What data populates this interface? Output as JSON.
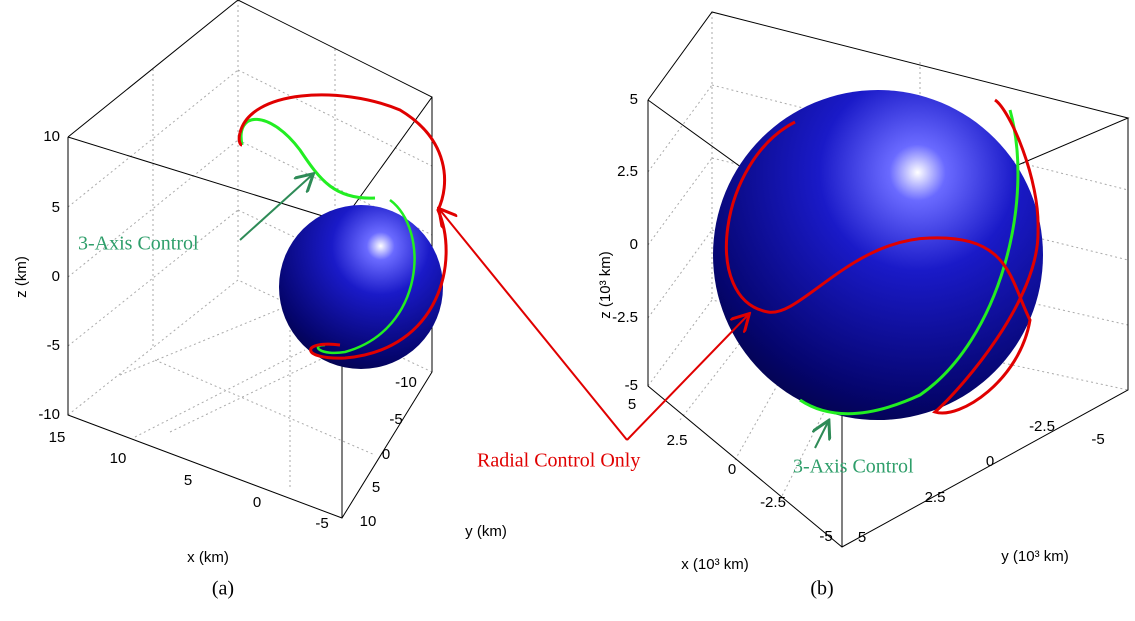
{
  "panels": [
    {
      "caption": "(a)",
      "z_label": "z (km)",
      "x_label": "x (km)",
      "y_label": "y (km)",
      "z_ticks": [
        "10",
        "5",
        "0",
        "-5",
        "-10"
      ],
      "x_ticks": [
        "15",
        "10",
        "5",
        "0",
        "-5"
      ],
      "y_ticks": [
        "-10",
        "-5",
        "0",
        "5",
        "10"
      ],
      "annotation": "3-Axis Control"
    },
    {
      "caption": "(b)",
      "z_label": "z (10³ km)",
      "x_label": "x (10³ km)",
      "y_label": "y (10³ km)",
      "z_ticks": [
        "5",
        "2.5",
        "0",
        "-2.5",
        "-5"
      ],
      "x_ticks": [
        "5",
        "2.5",
        "0",
        "-2.5",
        "-5"
      ],
      "y_ticks": [
        "-5",
        "-2.5",
        "0",
        "2.5",
        "5"
      ],
      "annotation": "3-Axis Control"
    }
  ],
  "shared_annotation": "Radial Control Only"
}
